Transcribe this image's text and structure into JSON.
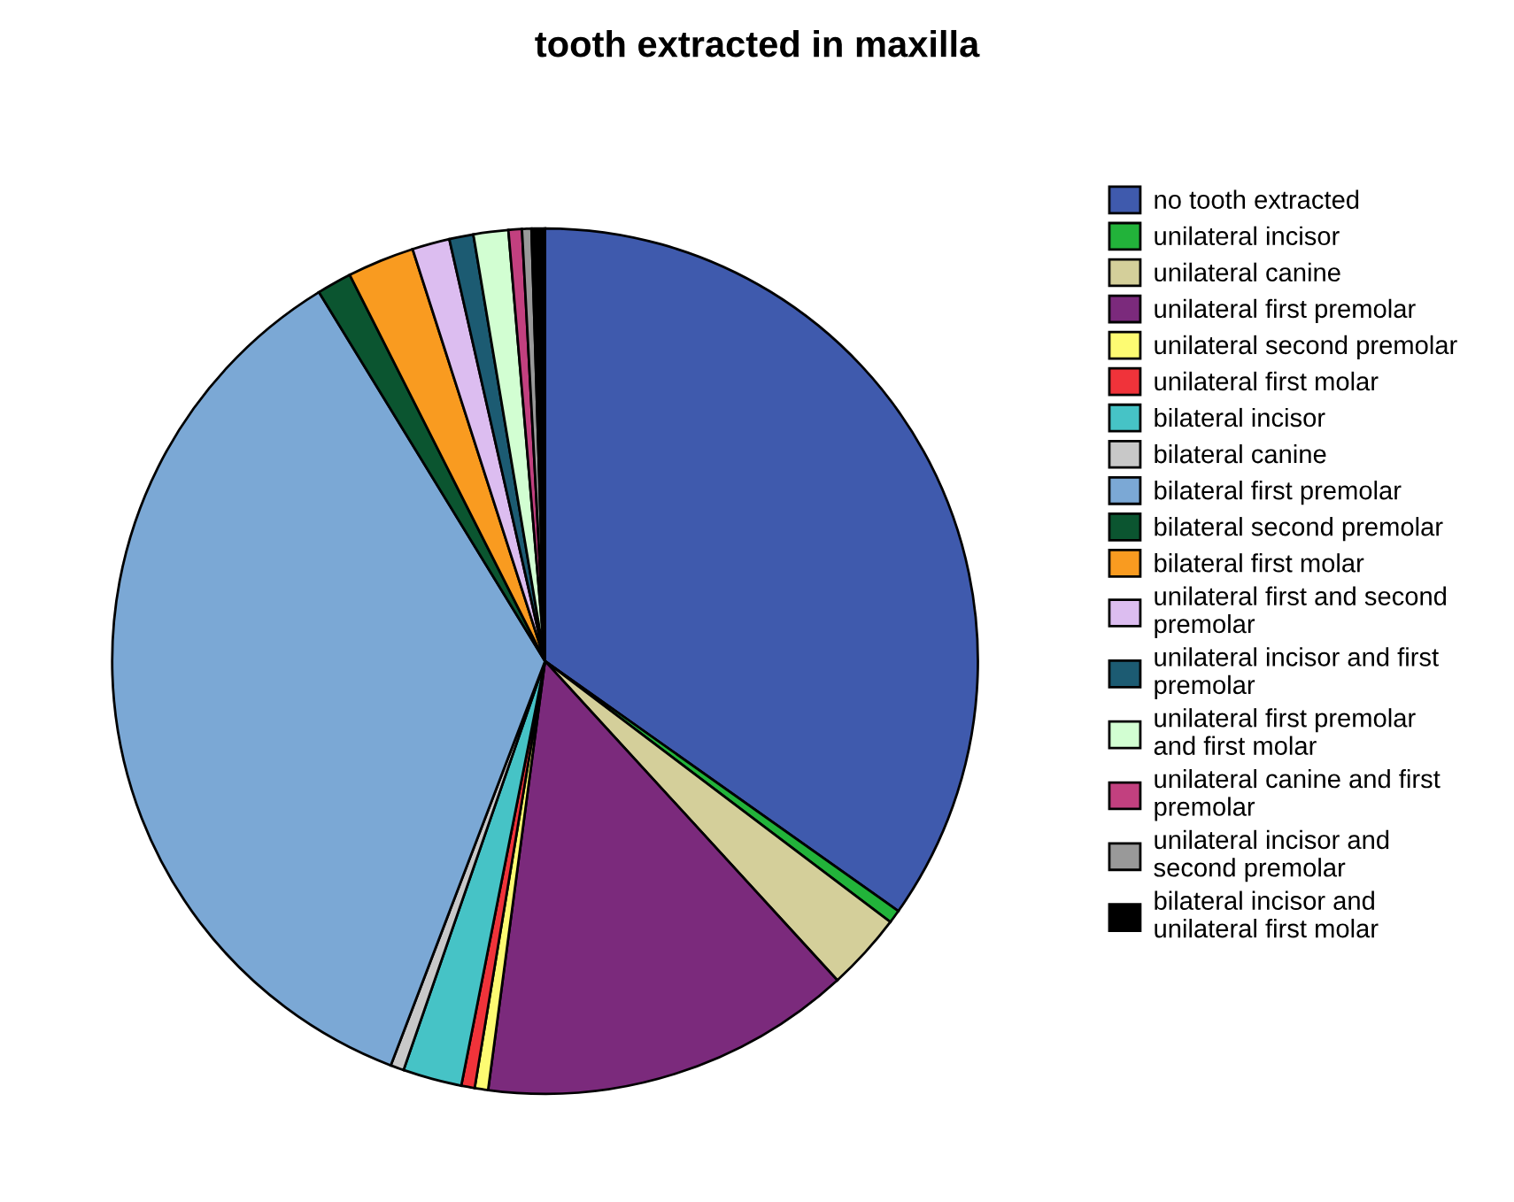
{
  "chart_data": {
    "type": "pie",
    "title": "tooth extracted in maxilla",
    "categories": [
      "no tooth extracted",
      "unilateral incisor",
      "unilateral canine",
      "unilateral first premolar",
      "unilateral second premolar",
      "unilateral first molar",
      "bilateral incisor",
      "bilateral canine",
      "bilateral first premolar",
      "bilateral second premolar",
      "bilateral first molar",
      "unilateral first and second\npremolar",
      "unilateral incisor and first\npremolar",
      "unilateral first premolar\nand first molar",
      "unilateral canine and first\npremolar",
      "unilateral incisor and\nsecond premolar",
      "bilateral incisor and\nunilateral first molar"
    ],
    "values": [
      34.8,
      0.5,
      2.9,
      13.9,
      0.5,
      0.5,
      2.2,
      0.5,
      35.45,
      1.3,
      2.5,
      1.4,
      0.9,
      1.3,
      0.5,
      0.35,
      0.5
    ],
    "colors": [
      "#3f5aad",
      "#22b33a",
      "#d4cf9a",
      "#7b2a7c",
      "#fdfb72",
      "#f0333a",
      "#46c3c6",
      "#c8c8c8",
      "#7ba8d5",
      "#0b5530",
      "#f99b20",
      "#dcbdf0",
      "#1c5b72",
      "#d2fed2",
      "#c2407f",
      "#999999",
      "#000000"
    ],
    "legend": "right"
  }
}
